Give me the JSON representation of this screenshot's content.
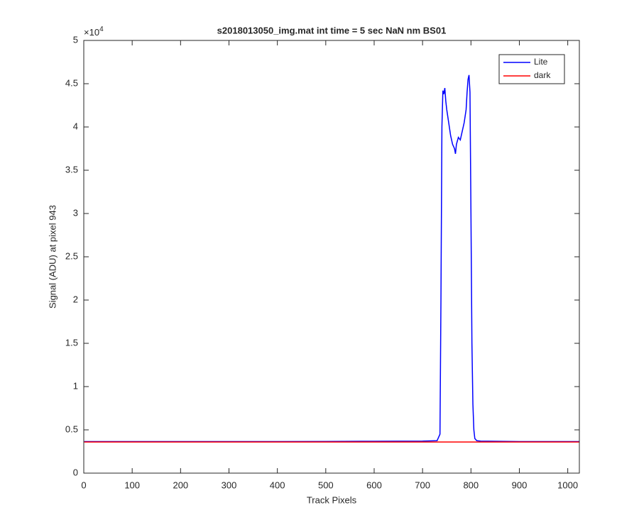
{
  "chart_data": {
    "type": "line",
    "title": "s2018013050_img.mat int time = 5 sec  NaN nm BS01",
    "x_label": "Track Pixels",
    "y_label": "Signal (ADU) at pixel 943",
    "y_multiplier": {
      "base": "×10",
      "exponent": "4"
    },
    "x": [
      1,
      100,
      200,
      300,
      400,
      500,
      600,
      700,
      730,
      736,
      738,
      740,
      742,
      744,
      746,
      748,
      750,
      754,
      758,
      762,
      766,
      768,
      770,
      774,
      778,
      782,
      786,
      790,
      792,
      794,
      796,
      798,
      800,
      802,
      804,
      806,
      808,
      812,
      820,
      900,
      1024
    ],
    "series": [
      {
        "name": "Lite",
        "color": "#0000ff",
        "values": [
          3650,
          3650,
          3650,
          3650,
          3650,
          3660,
          3680,
          3700,
          3750,
          4500,
          20000,
          40000,
          44200,
          43800,
          44500,
          43000,
          42000,
          40500,
          39000,
          38000,
          37500,
          36900,
          38000,
          38800,
          38500,
          39500,
          40500,
          42000,
          44000,
          45500,
          46000,
          44000,
          30000,
          15000,
          8000,
          5000,
          4000,
          3750,
          3700,
          3650,
          3650
        ]
      },
      {
        "name": "dark",
        "color": "#ff0000",
        "values": [
          3600,
          3600,
          3600,
          3600,
          3600,
          3600,
          3600,
          3600,
          3600,
          3600,
          3600,
          3600,
          3600,
          3600,
          3600,
          3600,
          3600,
          3600,
          3600,
          3600,
          3600,
          3600,
          3600,
          3600,
          3600,
          3600,
          3600,
          3600,
          3600,
          3600,
          3600,
          3600,
          3600,
          3600,
          3600,
          3600,
          3600,
          3600,
          3600,
          3600,
          3600
        ]
      }
    ],
    "xlim": [
      0,
      1024
    ],
    "xticks": [
      0,
      100,
      200,
      300,
      400,
      500,
      600,
      700,
      800,
      900,
      1000
    ],
    "ylim": [
      0,
      50000
    ],
    "yticks": [
      {
        "value": 0,
        "label": "0"
      },
      {
        "value": 5000,
        "label": "0.5"
      },
      {
        "value": 10000,
        "label": "1"
      },
      {
        "value": 15000,
        "label": "1.5"
      },
      {
        "value": 20000,
        "label": "2"
      },
      {
        "value": 25000,
        "label": "2.5"
      },
      {
        "value": 30000,
        "label": "3"
      },
      {
        "value": 35000,
        "label": "3.5"
      },
      {
        "value": 40000,
        "label": "4"
      },
      {
        "value": 45000,
        "label": "4.5"
      },
      {
        "value": 50000,
        "label": "5"
      }
    ],
    "legend": "upper right"
  }
}
